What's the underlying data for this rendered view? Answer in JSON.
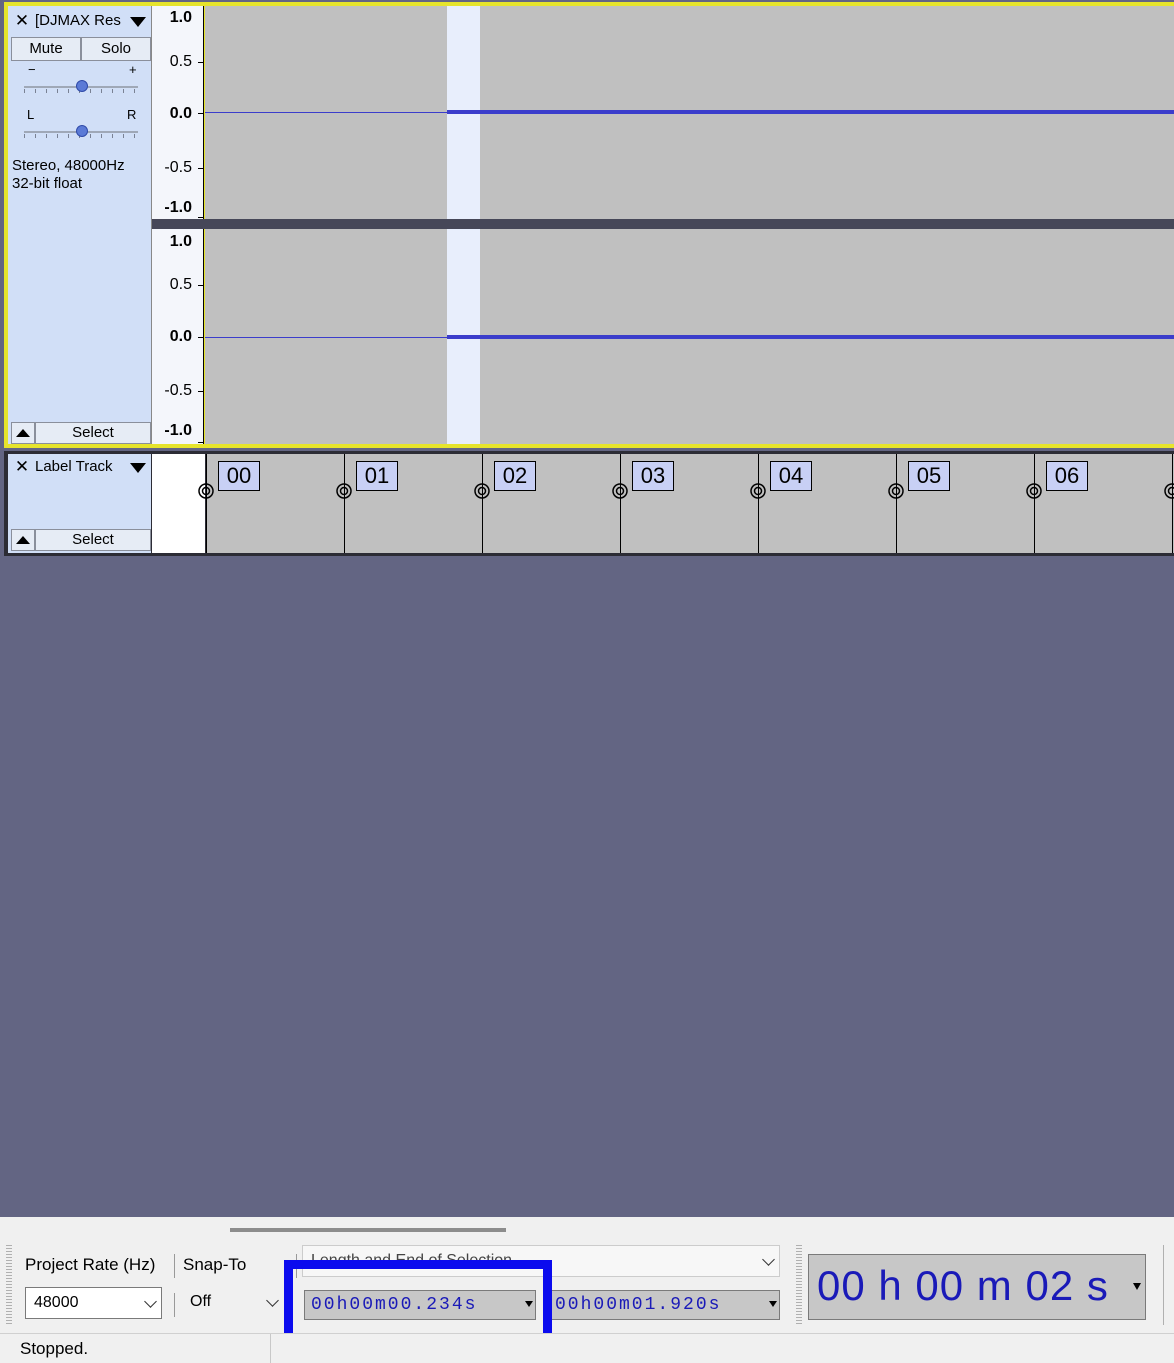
{
  "audio_track": {
    "name": "[DJMAX Res",
    "mute_label": "Mute",
    "solo_label": "Solo",
    "gain_minus": "−",
    "gain_plus": "+",
    "pan_left": "L",
    "pan_right": "R",
    "info_line1": "Stereo, 48000Hz",
    "info_line2": "32-bit float",
    "select_label": "Select",
    "ruler_labels": [
      "1.0",
      "0.5",
      "0.0",
      "-0.5",
      "-1.0"
    ]
  },
  "label_track": {
    "name": "Label Track",
    "select_label": "Select",
    "labels": [
      "00",
      "01",
      "02",
      "03",
      "04",
      "05",
      "06"
    ]
  },
  "toolbar": {
    "project_rate_label": "Project Rate (Hz)",
    "project_rate_value": "48000",
    "snap_to_label": "Snap-To",
    "snap_to_value": "Off",
    "selection_label": "Length and End of Selection",
    "selection_length": "00h00m00.234s",
    "selection_end": "00h00m01.920s",
    "audio_position": "00 h 00 m 02 s"
  },
  "status": {
    "text": "Stopped."
  },
  "colors": {
    "track_bg": "#c0c0c0",
    "waveform": "#3b3dcb",
    "selection": "#e8eefc",
    "background": "#636583",
    "highlight": "#0b0bee"
  }
}
